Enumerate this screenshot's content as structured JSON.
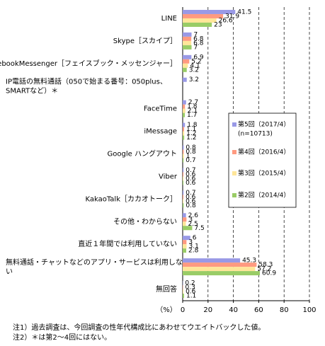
{
  "chart_data": {
    "type": "hbar",
    "categories": [
      "LINE",
      "Skype［スカイプ］",
      "FacebookMessenger［フェイスブック・メッセンジャー］",
      "IP電話の無料通話（050で始まる番号：050plus、\nSMARTなど）＊",
      "FaceTime",
      "iMessage",
      "Google ハングアウト",
      "Viber",
      "KakaoTalk［カカオトーク］",
      "その他・わからない",
      "直近１年間では利用していない",
      "無料通話・チャットなどのアプリ・サービスは利用しな\nい",
      "無回答"
    ],
    "series": [
      {
        "name": "第5回（2017/4）",
        "note": "(n=10713)",
        "color": "#9999e6",
        "values": [
          41.5,
          7.0,
          6.9,
          3.2,
          2.7,
          1.8,
          0.8,
          0.7,
          0.7,
          2.6,
          6.0,
          45.3,
          0.2
        ]
      },
      {
        "name": "第4回（2016/4）",
        "color": "#ff9a80",
        "values": [
          31.9,
          6.8,
          5.2,
          null,
          1.8,
          1.1,
          0.8,
          0.6,
          0.6,
          3.0,
          3.0,
          58.3,
          0.3
        ]
      },
      {
        "name": "第3回（2015/4）",
        "color": "#ffe699",
        "values": [
          26.6,
          6.8,
          4.1,
          null,
          2.1,
          1.2,
          1.0,
          0.6,
          0.6,
          2.5,
          3.1,
          57.2,
          0.6
        ]
      },
      {
        "name": "第2回（2014/4）",
        "color": "#99cc66",
        "values": [
          23.0,
          7.0,
          3.2,
          null,
          1.7,
          1.2,
          0.7,
          0.6,
          0.8,
          7.5,
          2.8,
          60.9,
          1.1
        ]
      }
    ],
    "xlim": [
      0,
      100
    ],
    "xticks": [
      0,
      20,
      40,
      60,
      80,
      100
    ],
    "grid": true,
    "x_label": "（%）",
    "notes": [
      "注1）過去調査は、今回調査の性年代構成比にあわせてウエイトバックした値。",
      "注2）＊は第2～4回にはない。"
    ]
  }
}
